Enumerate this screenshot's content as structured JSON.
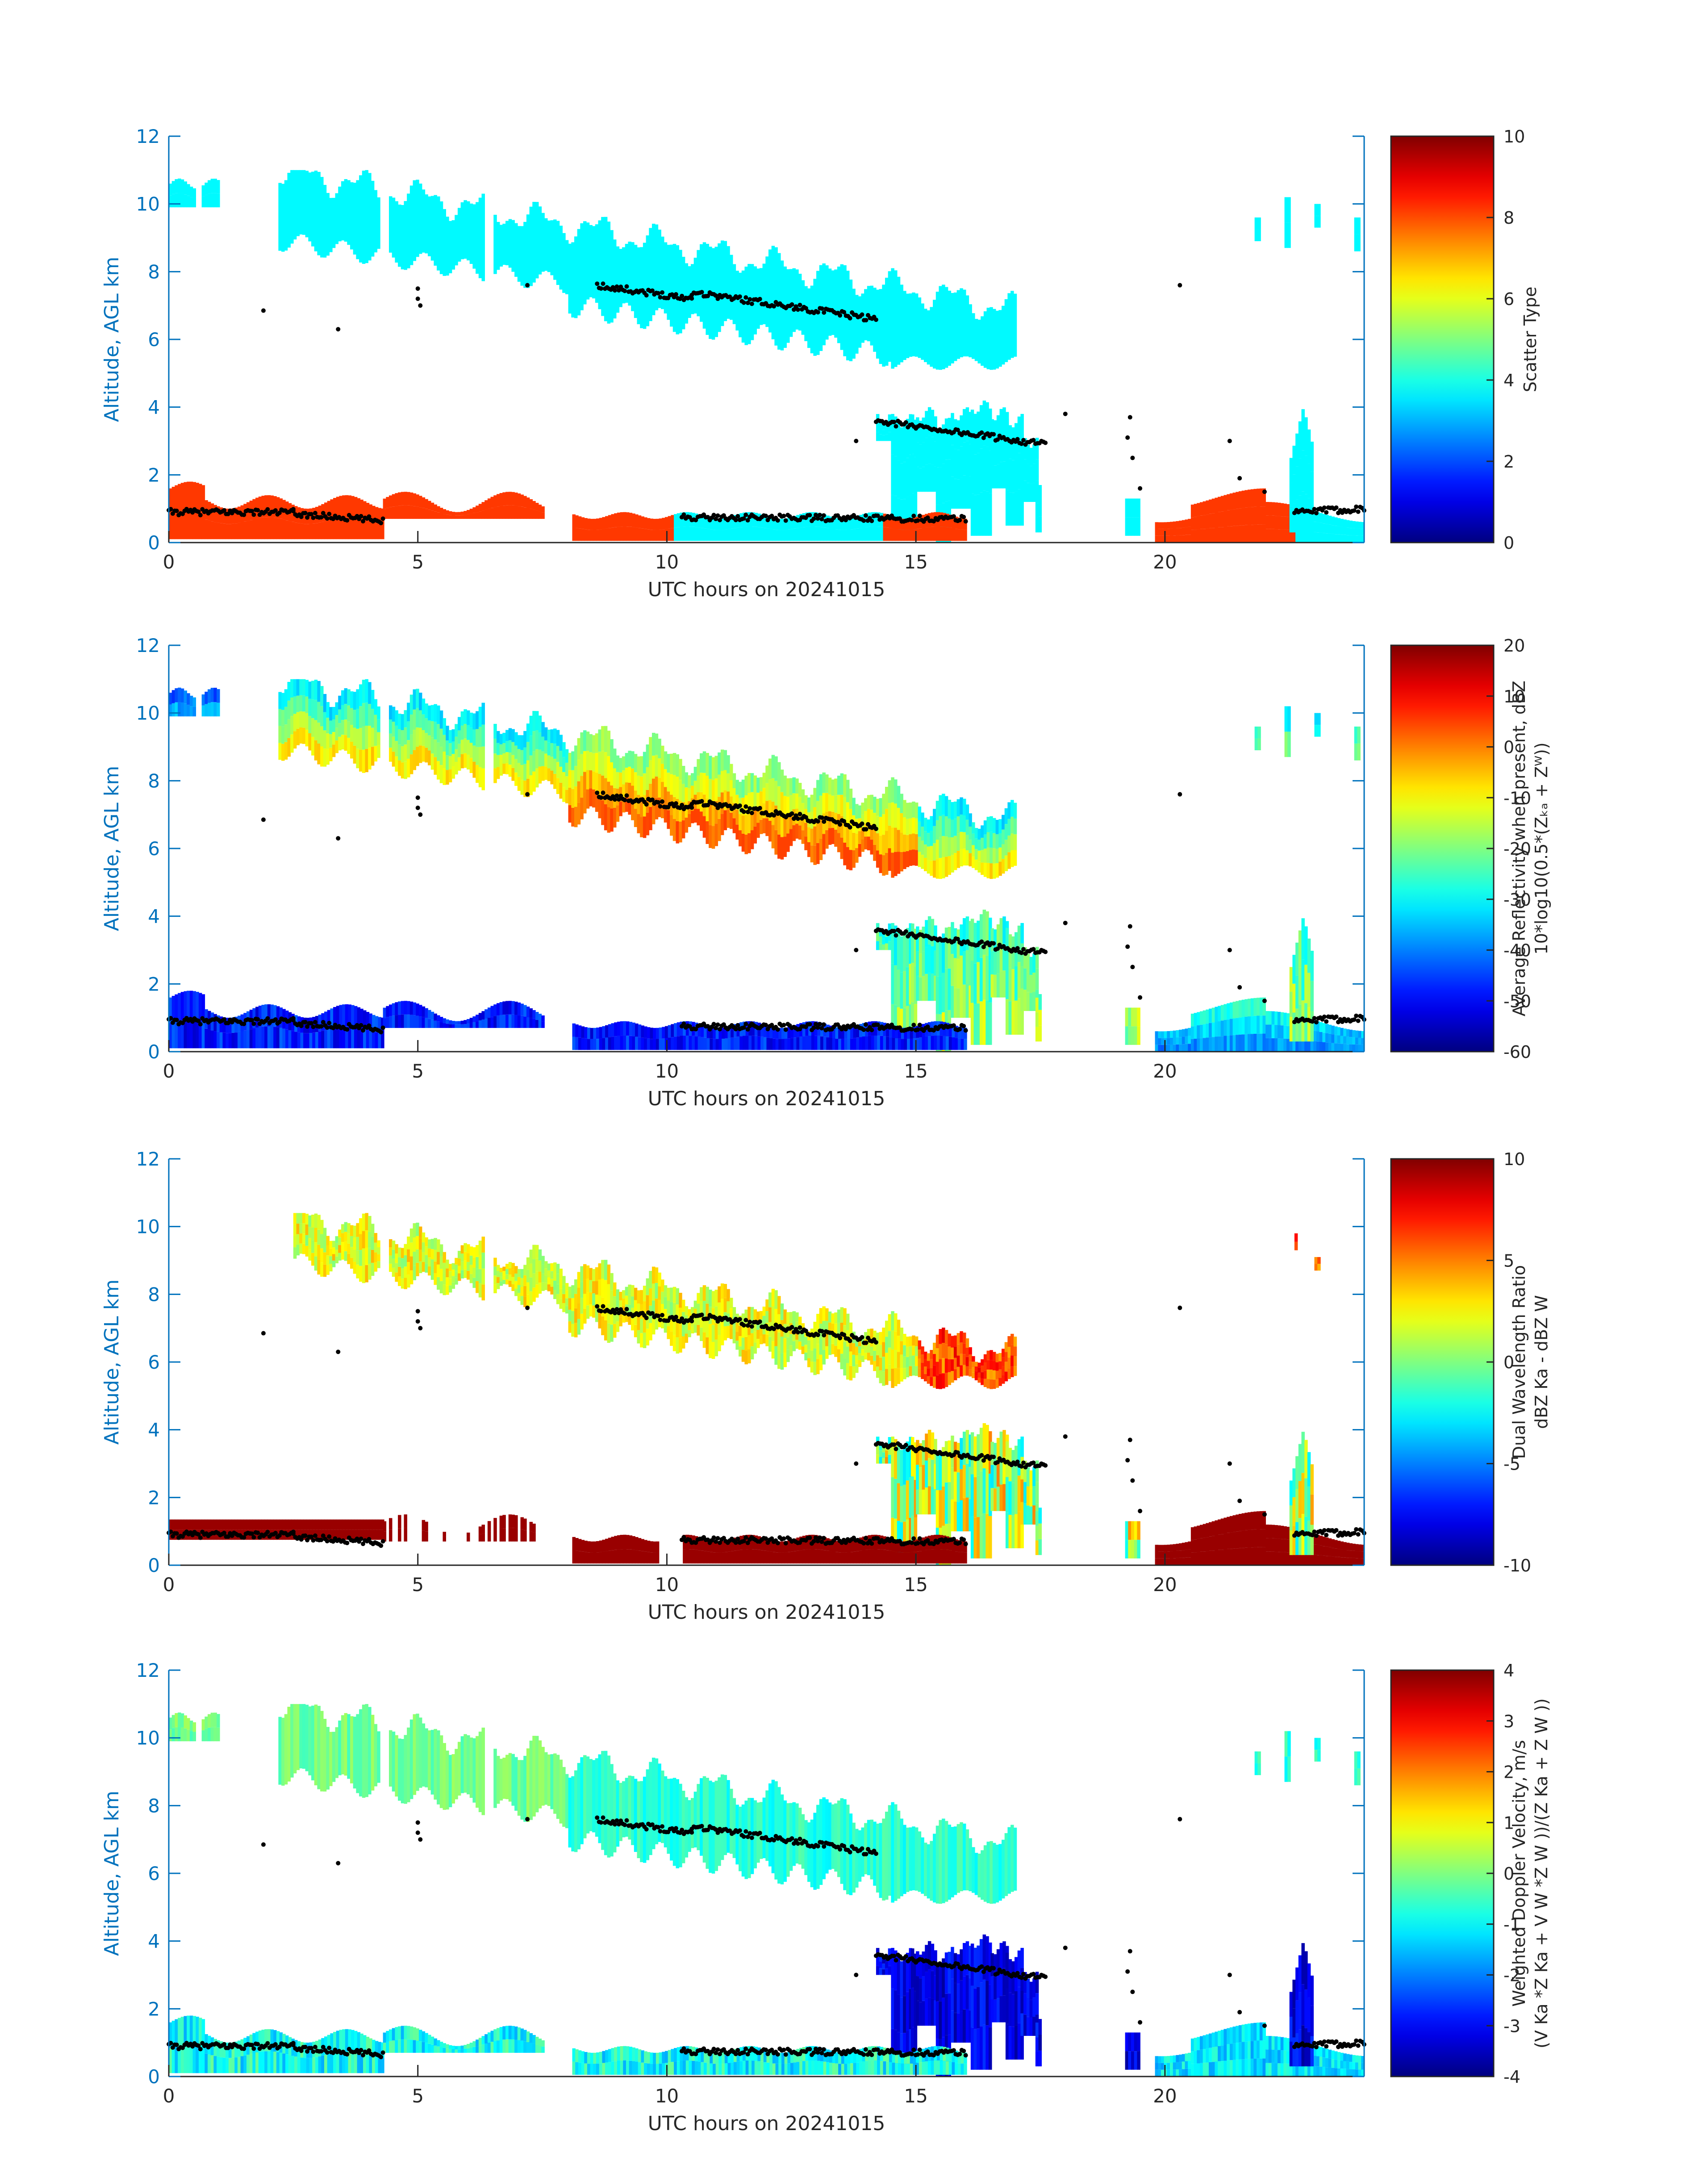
{
  "figure": {
    "panels": [
      {
        "id": "scatter",
        "ylabel": "Altitude, AGL km",
        "xlabel": "UTC hours on 20241015",
        "colorbar": {
          "label_lines": [
            "Scatter Type"
          ],
          "min": 0,
          "max": 10,
          "ticks": [
            "0",
            "2",
            "4",
            "6",
            "8",
            "10"
          ]
        },
        "style": "scatter"
      },
      {
        "id": "reflectivity",
        "ylabel": "Altitude, AGL km",
        "xlabel": "UTC hours on 20241015",
        "colorbar": {
          "label_lines": [
            "Average Reflectivity when present, dBZ",
            "10*log10(0.5*(Zₖₐ + Zᵂ))"
          ],
          "min": -60,
          "max": 20,
          "ticks": [
            "-60",
            "-50",
            "-40",
            "-30",
            "-20",
            "-10",
            "0",
            "10",
            "20"
          ]
        },
        "style": "refl"
      },
      {
        "id": "dwr",
        "ylabel": "Altitude, AGL km",
        "xlabel": "UTC hours on 20241015",
        "colorbar": {
          "label_lines": [
            "Dual Wavelength Ratio",
            "dBZ Ka - dBZ W"
          ],
          "min": -10,
          "max": 10,
          "ticks": [
            "-10",
            "-5",
            "0",
            "5",
            "10"
          ]
        },
        "style": "dwr"
      },
      {
        "id": "velocity",
        "ylabel": "Altitude, AGL km",
        "xlabel": "UTC hours on 20241015",
        "colorbar": {
          "label_lines": [
            "Weighted Doppler Velocity, m/s",
            "(V Ka *Z Ka + V W *Z W ))/(Z Ka + Z W ))"
          ],
          "min": -4,
          "max": 4,
          "ticks": [
            "-4",
            "-3",
            "-2",
            "-1",
            "0",
            "1",
            "2",
            "3",
            "4"
          ]
        },
        "style": "vel"
      }
    ]
  },
  "chart_data": {
    "type": "heatmap",
    "x_axis": {
      "label": "UTC hours on 20241015",
      "range": [
        0,
        24
      ],
      "ticks": [
        "0",
        "5",
        "10",
        "15",
        "20"
      ]
    },
    "y_axis": {
      "label": "Altitude, AGL km",
      "range": [
        0,
        12
      ],
      "ticks": [
        "0",
        "2",
        "4",
        "6",
        "8",
        "10",
        "12"
      ]
    },
    "colormap": "jet",
    "overlay_markers": "black dots (cloud base / layer markers)",
    "cloud_regions": [
      {
        "x": [
          0.0,
          1.0
        ],
        "y": [
          9.8,
          10.8
        ],
        "desc": "early cirrus"
      },
      {
        "x": [
          2.2,
          17.0
        ],
        "y": [
          5.2,
          11.0
        ],
        "desc": "descending cirrus layer"
      },
      {
        "x": [
          14.2,
          17.5
        ],
        "y": [
          0.0,
          4.2
        ],
        "desc": "mid-level fall streaks"
      },
      {
        "x": [
          0.0,
          7.5
        ],
        "y": [
          0.0,
          1.8
        ],
        "desc": "boundary layer returns"
      },
      {
        "x": [
          8.1,
          16.0
        ],
        "y": [
          0.0,
          1.0
        ],
        "desc": "low layer"
      },
      {
        "x": [
          19.8,
          24.0
        ],
        "y": [
          0.0,
          1.5
        ],
        "desc": "late low layer"
      },
      {
        "x": [
          22.5,
          23.0
        ],
        "y": [
          0.0,
          4.0
        ],
        "desc": "late plume"
      },
      {
        "x": [
          21.8,
          23.6
        ],
        "y": [
          8.6,
          10.0
        ],
        "desc": "late cirrus"
      }
    ],
    "marker_groups": [
      {
        "x": [
          0.0,
          2.5
        ],
        "y": [
          0.9,
          0.9
        ]
      },
      {
        "x": [
          2.5,
          4.3
        ],
        "y": [
          0.85,
          0.65
        ]
      },
      {
        "x": [
          8.6,
          10.5
        ],
        "y": [
          7.6,
          7.2
        ]
      },
      {
        "x": [
          10.5,
          14.2
        ],
        "y": [
          7.4,
          6.6
        ]
      },
      {
        "x": [
          10.3,
          16.0
        ],
        "y": [
          0.75,
          0.7
        ]
      },
      {
        "x": [
          14.2,
          17.6
        ],
        "y": [
          3.6,
          2.9
        ]
      },
      {
        "x": [
          22.6,
          24.0
        ],
        "y": [
          0.9,
          1.0
        ]
      }
    ]
  }
}
